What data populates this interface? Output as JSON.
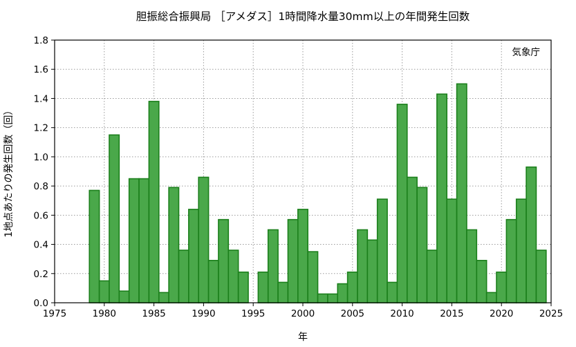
{
  "chart_data": {
    "type": "bar",
    "title": "胆振総合振興局 ［アメダス］1時間降水量30mm以上の年間発生回数",
    "xlabel": "年",
    "ylabel": "1地点あたりの発生回数（回）",
    "annotation": "気象庁",
    "xlim": [
      1975,
      2025
    ],
    "ylim": [
      0,
      1.8
    ],
    "x_ticks": [
      1975,
      1980,
      1985,
      1990,
      1995,
      2000,
      2005,
      2010,
      2015,
      2020,
      2025
    ],
    "y_ticks": [
      "0.0",
      "0.2",
      "0.4",
      "0.6",
      "0.8",
      "1.0",
      "1.2",
      "1.4",
      "1.6",
      "1.8"
    ],
    "grid": true,
    "colors": {
      "bar_fill": "#4aa84a",
      "bar_stroke": "#1b7f1b",
      "axis": "#000000",
      "grid": "#9a9a9a"
    },
    "years": [
      1979,
      1980,
      1981,
      1982,
      1983,
      1984,
      1985,
      1986,
      1987,
      1988,
      1989,
      1990,
      1991,
      1992,
      1993,
      1994,
      1995,
      1996,
      1997,
      1998,
      1999,
      2000,
      2001,
      2002,
      2003,
      2004,
      2005,
      2006,
      2007,
      2008,
      2009,
      2010,
      2011,
      2012,
      2013,
      2014,
      2015,
      2016,
      2017,
      2018,
      2019,
      2020,
      2021,
      2022,
      2023,
      2024
    ],
    "values": [
      0.77,
      0.15,
      1.15,
      0.08,
      0.85,
      0.85,
      1.38,
      0.07,
      0.79,
      0.36,
      0.64,
      0.86,
      0.29,
      0.57,
      0.36,
      0.21,
      0.0,
      0.21,
      0.5,
      0.14,
      0.57,
      0.64,
      0.35,
      0.06,
      0.06,
      0.13,
      0.21,
      0.5,
      0.43,
      0.71,
      0.14,
      1.36,
      0.86,
      0.79,
      0.36,
      1.43,
      0.71,
      1.5,
      0.5,
      0.29,
      0.07,
      0.21,
      0.57,
      0.71,
      0.93,
      0.36
    ]
  }
}
